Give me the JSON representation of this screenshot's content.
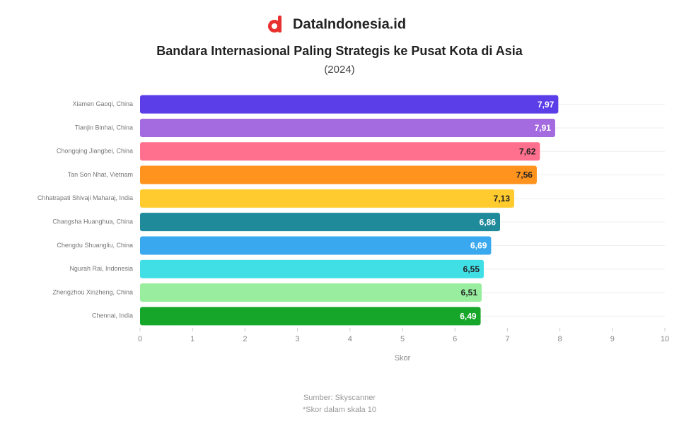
{
  "brand": "DataIndonesia.id",
  "chart_data": {
    "type": "bar",
    "orientation": "horizontal",
    "title": "Bandara Internasional Paling Strategis ke Pusat Kota di Asia",
    "subtitle": "(2024)",
    "x_label": "Skor",
    "categories": [
      "Xiamen Gaoqi, China",
      "Tianjin Binhai, China",
      "Chongqing Jiangbei, China",
      "Tan Son Nhat, Vietnam",
      "Chhatrapati Shivaji Maharaj, India",
      "Changsha Huanghua, China",
      "Chengdu Shuangliu, China",
      "Ngurah Rai, Indonesia",
      "Zhengzhou Xinzheng, China",
      "Chennai, India"
    ],
    "values": [
      7.97,
      7.91,
      7.62,
      7.56,
      7.13,
      6.86,
      6.69,
      6.55,
      6.51,
      6.49
    ],
    "value_labels": [
      "7,97",
      "7,91",
      "7,62",
      "7,56",
      "7,13",
      "6,86",
      "6,69",
      "6,55",
      "6,51",
      "6,49"
    ],
    "colors": [
      "#5b3ee8",
      "#a46ae0",
      "#ff6f8e",
      "#ff931e",
      "#ffcb2f",
      "#1f8a9a",
      "#3aa8ef",
      "#40dfe6",
      "#98ee9e",
      "#16a62a"
    ],
    "xlim": [
      0,
      10
    ],
    "xticks": [
      0,
      1,
      2,
      3,
      4,
      5,
      6,
      7,
      8,
      9,
      10
    ],
    "source": "Sumber: Skyscanner",
    "note": "*Skor dalam skala 10"
  }
}
